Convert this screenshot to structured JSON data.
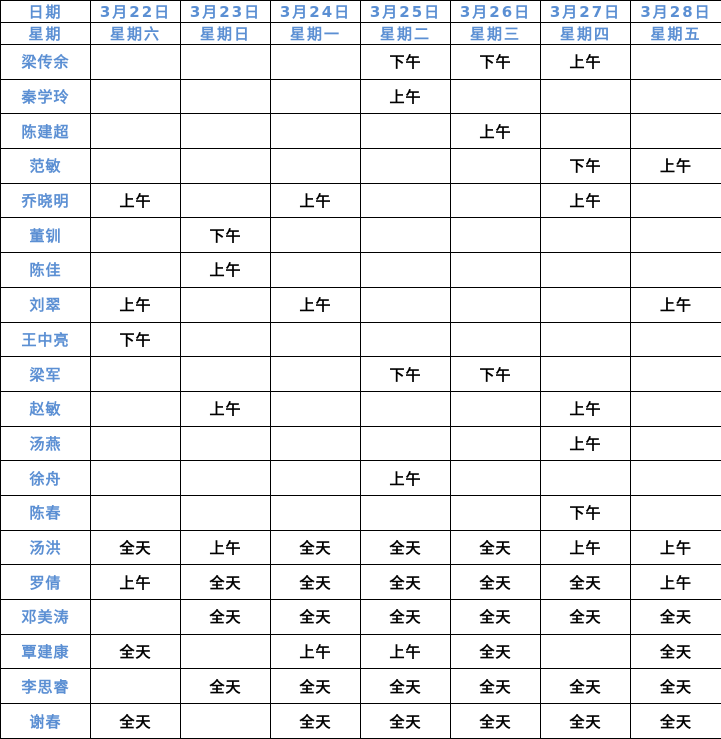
{
  "colors": {
    "header_text": "#5B8FD3",
    "name_text": "#5B8FD3",
    "value_text": "#000000",
    "grid_border": "#000000",
    "background": "#FFFFFF"
  },
  "table": {
    "header_rows": [
      {
        "label": "日期",
        "cells": [
          "3月22日",
          "3月23日",
          "3月24日",
          "3月25日",
          "3月26日",
          "3月27日",
          "3月28日"
        ]
      },
      {
        "label": "星期",
        "cells": [
          "星期六",
          "星期日",
          "星期一",
          "星期二",
          "星期三",
          "星期四",
          "星期五"
        ]
      }
    ],
    "rows": [
      {
        "name": "梁传余",
        "cells": [
          "",
          "",
          "",
          "下午",
          "下午",
          "上午",
          ""
        ]
      },
      {
        "name": "秦学玲",
        "cells": [
          "",
          "",
          "",
          "上午",
          "",
          "",
          ""
        ]
      },
      {
        "name": "陈建超",
        "cells": [
          "",
          "",
          "",
          "",
          "上午",
          "",
          ""
        ]
      },
      {
        "name": "范敏",
        "cells": [
          "",
          "",
          "",
          "",
          "",
          "下午",
          "上午"
        ]
      },
      {
        "name": "乔晓明",
        "cells": [
          "上午",
          "",
          "上午",
          "",
          "",
          "上午",
          ""
        ]
      },
      {
        "name": "董钏",
        "cells": [
          "",
          "下午",
          "",
          "",
          "",
          "",
          ""
        ]
      },
      {
        "name": "陈佳",
        "cells": [
          "",
          "上午",
          "",
          "",
          "",
          "",
          ""
        ]
      },
      {
        "name": "刘翠",
        "cells": [
          "上午",
          "",
          "上午",
          "",
          "",
          "",
          "上午"
        ]
      },
      {
        "name": "王中亮",
        "cells": [
          "下午",
          "",
          "",
          "",
          "",
          "",
          ""
        ]
      },
      {
        "name": "梁军",
        "cells": [
          "",
          "",
          "",
          "下午",
          "下午",
          "",
          ""
        ]
      },
      {
        "name": "赵敏",
        "cells": [
          "",
          "上午",
          "",
          "",
          "",
          "上午",
          ""
        ]
      },
      {
        "name": "汤燕",
        "cells": [
          "",
          "",
          "",
          "",
          "",
          "上午",
          ""
        ]
      },
      {
        "name": "徐舟",
        "cells": [
          "",
          "",
          "",
          "上午",
          "",
          "",
          ""
        ]
      },
      {
        "name": "陈春",
        "cells": [
          "",
          "",
          "",
          "",
          "",
          "下午",
          ""
        ]
      },
      {
        "name": "汤洪",
        "cells": [
          "全天",
          "上午",
          "全天",
          "全天",
          "全天",
          "上午",
          "上午"
        ]
      },
      {
        "name": "罗倩",
        "cells": [
          "上午",
          "全天",
          "全天",
          "全天",
          "全天",
          "全天",
          "上午"
        ]
      },
      {
        "name": "邓美涛",
        "cells": [
          "",
          "全天",
          "全天",
          "全天",
          "全天",
          "全天",
          "全天"
        ]
      },
      {
        "name": "覃建康",
        "cells": [
          "全天",
          "",
          "上午",
          "上午",
          "全天",
          "",
          "全天"
        ]
      },
      {
        "name": "李思睿",
        "cells": [
          "",
          "全天",
          "全天",
          "全天",
          "全天",
          "全天",
          "全天"
        ]
      },
      {
        "name": "谢春",
        "cells": [
          "全天",
          "",
          "全天",
          "全天",
          "全天",
          "全天",
          "全天"
        ]
      }
    ]
  },
  "chart_data": {
    "type": "table",
    "title": "",
    "columns": [
      "日期/星期",
      "3月22日 星期六",
      "3月23日 星期日",
      "3月24日 星期一",
      "3月25日 星期二",
      "3月26日 星期三",
      "3月27日 星期四",
      "3月28日 星期五"
    ],
    "legend_values": [
      "上午",
      "下午",
      "全天"
    ]
  }
}
